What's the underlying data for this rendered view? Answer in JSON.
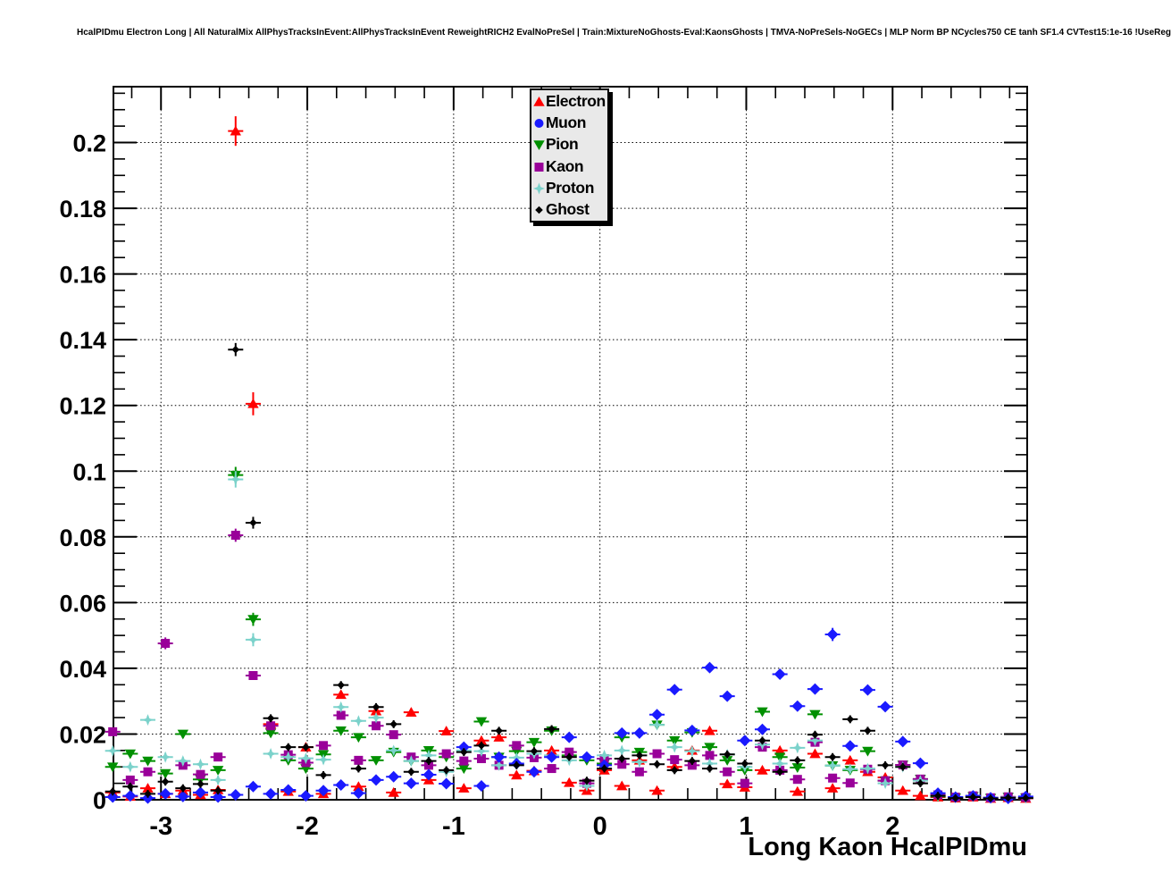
{
  "title": "HcalPIDmu Electron Long | All NaturalMix AllPhysTracksInEvent:AllPhysTracksInEvent ReweightRICH2 EvalNoPreSel | Train:MixtureNoGhosts-Eval:KaonsGhosts | TMVA-NoPreSels-NoGECs | MLP Norm BP NCycles750 CE tanh SF1.4 CVTest15:1e-16 !UseReg",
  "chart_data": {
    "type": "scatter",
    "title": "HcalPIDmu Electron Long | All NaturalMix AllPhysTracksInEvent:AllPhysTracksInEvent ReweightRICH2 EvalNoPreSel | Train:MixtureNoGhosts-Eval:KaonsGhosts | TMVA-NoPreSels-NoGECs | MLP Norm BP NCycles750 CE tanh SF1.4 CVTest15:1e-16 !UseReg",
    "xlabel": "Long Kaon HcalPIDmu",
    "ylabel": "",
    "grid": "dotted",
    "legend_position": "top-center",
    "x_axis": {
      "min": -3.325,
      "max": 2.92,
      "tick_values": [
        -3,
        -2,
        -1,
        0,
        1,
        2
      ],
      "tick_labels": [
        "-3",
        "-2",
        "-1",
        "0",
        "1",
        "2"
      ],
      "minor_step": 0.2
    },
    "y_axis": {
      "min": 0,
      "max": 0.217,
      "major_step": 0.02,
      "minor_step": 0.005,
      "tick_labels": [
        "0",
        "0.02",
        "0.04",
        "0.06",
        "0.08",
        "0.1",
        "0.12",
        "0.14",
        "0.16",
        "0.18",
        "0.2"
      ]
    },
    "error_bars": {
      "x_half_width": 0.052,
      "y_default": 0.0012
    },
    "x": [
      -3.33,
      -3.21,
      -3.09,
      -2.97,
      -2.85,
      -2.73,
      -2.61,
      -2.49,
      -2.37,
      -2.25,
      -2.13,
      -2.01,
      -1.89,
      -1.77,
      -1.65,
      -1.53,
      -1.41,
      -1.29,
      -1.17,
      -1.05,
      -0.93,
      -0.81,
      -0.69,
      -0.57,
      -0.45,
      -0.33,
      -0.21,
      -0.09,
      0.03,
      0.15,
      0.27,
      0.39,
      0.51,
      0.63,
      0.75,
      0.87,
      0.99,
      1.11,
      1.23,
      1.35,
      1.47,
      1.59,
      1.71,
      1.83,
      1.95,
      2.07,
      2.19,
      2.31,
      2.43,
      2.55,
      2.67,
      2.79,
      2.91
    ],
    "series": [
      {
        "name": "Electron",
        "color": "#ff0000",
        "marker": "triangle-up",
        "legend_marker": "triangle-up",
        "y": [
          0.0022,
          0.001,
          0.0035,
          0.0018,
          0.0028,
          0.0015,
          0.003,
          0.2035,
          0.1205,
          0.023,
          0.0025,
          0.016,
          0.0018,
          0.032,
          0.004,
          0.027,
          0.0022,
          0.0266,
          0.006,
          0.0209,
          0.0035,
          0.018,
          0.019,
          0.0075,
          0.0088,
          0.015,
          0.0052,
          0.0028,
          0.009,
          0.0042,
          0.012,
          0.0028,
          0.01,
          0.015,
          0.021,
          0.0048,
          0.0038,
          0.009,
          0.015,
          0.0025,
          0.014,
          0.0035,
          0.012,
          0.0085,
          0.0068,
          0.0028,
          0.0012,
          0.0008,
          0.0005,
          0.0008,
          0.0004,
          0.0006,
          0.0004
        ],
        "ey": {
          "7": 0.0045,
          "8": 0.0035
        }
      },
      {
        "name": "Muon",
        "color": "#1a1aff",
        "marker": "diamond",
        "legend_marker": "circle",
        "y": [
          0.0008,
          0.0012,
          0.0005,
          0.0018,
          0.001,
          0.0022,
          0.0008,
          0.0015,
          0.004,
          0.0018,
          0.003,
          0.0012,
          0.0028,
          0.0045,
          0.002,
          0.006,
          0.007,
          0.005,
          0.0076,
          0.0049,
          0.016,
          0.0042,
          0.013,
          0.011,
          0.0085,
          0.013,
          0.019,
          0.013,
          0.0105,
          0.0203,
          0.0203,
          0.0259,
          0.0335,
          0.0211,
          0.0402,
          0.0315,
          0.018,
          0.0214,
          0.0382,
          0.0285,
          0.0337,
          0.0503,
          0.0164,
          0.0334,
          0.0283,
          0.0177,
          0.0111,
          0.002,
          0.0008,
          0.0012,
          0.0006,
          0.0004,
          0.001
        ],
        "ey": {
          "41": 0.002
        }
      },
      {
        "name": "Pion",
        "color": "#009000",
        "marker": "triangle-down",
        "legend_marker": "triangle-down",
        "y": [
          0.01,
          0.014,
          0.0118,
          0.008,
          0.02,
          0.0062,
          0.009,
          0.0988,
          0.0549,
          0.0203,
          0.012,
          0.0095,
          0.0138,
          0.021,
          0.019,
          0.012,
          0.0145,
          0.0118,
          0.015,
          0.013,
          0.0095,
          0.0238,
          0.013,
          0.0148,
          0.0175,
          0.021,
          0.0135,
          0.012,
          0.011,
          0.019,
          0.0145,
          0.0228,
          0.018,
          0.0205,
          0.016,
          0.012,
          0.009,
          0.0268,
          0.013,
          0.0098,
          0.026,
          0.0104,
          0.009,
          0.0148,
          0.0058,
          0.0106,
          0.0063,
          0.001,
          0.0006,
          0.001,
          0.0005,
          0.0008,
          0.0006
        ],
        "ey": {
          "7": 0.0025,
          "8": 0.002
        }
      },
      {
        "name": "Kaon",
        "color": "#990099",
        "marker": "square",
        "legend_marker": "square",
        "y": [
          0.0207,
          0.006,
          0.0085,
          0.0476,
          0.0105,
          0.0077,
          0.013,
          0.0805,
          0.0378,
          0.0225,
          0.0137,
          0.0113,
          0.0165,
          0.0257,
          0.012,
          0.0225,
          0.0198,
          0.013,
          0.0105,
          0.014,
          0.0118,
          0.0125,
          0.0105,
          0.0165,
          0.0128,
          0.0095,
          0.0145,
          0.005,
          0.0125,
          0.0108,
          0.0085,
          0.014,
          0.0122,
          0.0105,
          0.0135,
          0.0085,
          0.005,
          0.016,
          0.009,
          0.0062,
          0.0175,
          0.0066,
          0.0051,
          0.0093,
          0.0058,
          0.0106,
          0.0063,
          0.0015,
          0.0008,
          0.0012,
          0.0006,
          0.0009,
          0.0007
        ],
        "ey": {
          "3": 0.0018,
          "7": 0.002
        }
      },
      {
        "name": "Proton",
        "color": "#7bd2cb",
        "marker": "star4",
        "legend_marker": "star4",
        "y": [
          0.0149,
          0.01,
          0.0243,
          0.013,
          0.0118,
          0.0108,
          0.006,
          0.0975,
          0.0487,
          0.014,
          0.013,
          0.0126,
          0.0122,
          0.0282,
          0.024,
          0.025,
          0.015,
          0.0118,
          0.0135,
          0.0085,
          0.015,
          0.0148,
          0.0105,
          0.0128,
          0.014,
          0.0135,
          0.012,
          0.0042,
          0.0135,
          0.015,
          0.0115,
          0.0228,
          0.016,
          0.0148,
          0.011,
          0.0138,
          0.01,
          0.0168,
          0.011,
          0.0158,
          0.018,
          0.0104,
          0.0093,
          0.0095,
          0.005,
          0.01,
          0.0058,
          0.0012,
          0.0006,
          0.001,
          0.0005,
          0.0007,
          0.0005
        ],
        "ey": {
          "7": 0.0025,
          "8": 0.002
        }
      },
      {
        "name": "Ghost",
        "color": "#000000",
        "marker": "diamond-small",
        "legend_marker": "diamond-small",
        "y": [
          0.0025,
          0.004,
          0.0018,
          0.0055,
          0.0035,
          0.0048,
          0.0028,
          0.137,
          0.0843,
          0.0248,
          0.016,
          0.016,
          0.0075,
          0.0349,
          0.0095,
          0.0282,
          0.023,
          0.0085,
          0.0118,
          0.009,
          0.0145,
          0.0165,
          0.021,
          0.0105,
          0.0148,
          0.0215,
          0.013,
          0.0058,
          0.0095,
          0.0125,
          0.0135,
          0.0108,
          0.009,
          0.0118,
          0.0095,
          0.0138,
          0.011,
          0.018,
          0.0085,
          0.012,
          0.0198,
          0.013,
          0.0245,
          0.021,
          0.0105,
          0.01,
          0.005,
          0.0012,
          0.0005,
          0.0008,
          0.0004,
          0.0006,
          0.0005
        ],
        "ey": {
          "7": 0.002,
          "8": 0.0018
        }
      }
    ]
  }
}
